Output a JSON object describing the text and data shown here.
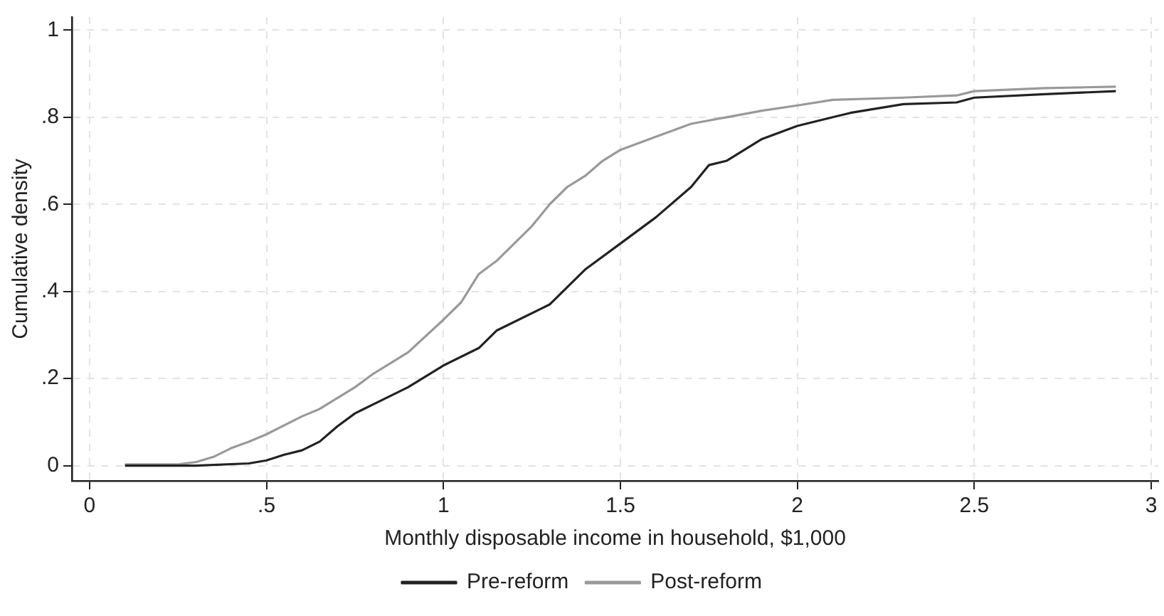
{
  "chart_data": {
    "type": "line",
    "xlabel": "Monthly disposable income in household, $1,000",
    "ylabel": "Cumulative density",
    "xlim": [
      -0.05,
      3.02
    ],
    "ylim": [
      -0.035,
      1.03
    ],
    "xticks": [
      {
        "value": 0,
        "label": "0"
      },
      {
        "value": 0.5,
        "label": ".5"
      },
      {
        "value": 1,
        "label": "1"
      },
      {
        "value": 1.5,
        "label": "1.5"
      },
      {
        "value": 2,
        "label": "2"
      },
      {
        "value": 2.5,
        "label": "2.5"
      },
      {
        "value": 3,
        "label": "3"
      }
    ],
    "yticks": [
      {
        "value": 0,
        "label": "0"
      },
      {
        "value": 0.2,
        "label": ".2"
      },
      {
        "value": 0.4,
        "label": ".4"
      },
      {
        "value": 0.6,
        "label": ".6"
      },
      {
        "value": 0.8,
        "label": ".8"
      },
      {
        "value": 1,
        "label": "1"
      }
    ],
    "grid": true,
    "legend": "bottom",
    "marker": "none",
    "line_style": "solid",
    "series": [
      {
        "name": "Pre-reform",
        "color": "#222222",
        "x": [
          0.1,
          0.3,
          0.45,
          0.5,
          0.55,
          0.6,
          0.65,
          0.7,
          0.75,
          0.8,
          0.9,
          1.0,
          1.1,
          1.15,
          1.3,
          1.4,
          1.5,
          1.6,
          1.7,
          1.75,
          1.8,
          1.9,
          2.0,
          2.1,
          2.15,
          2.3,
          2.45,
          2.5,
          2.7,
          2.9
        ],
        "values": [
          0,
          0,
          0.005,
          0.012,
          0.025,
          0.035,
          0.055,
          0.09,
          0.12,
          0.14,
          0.18,
          0.23,
          0.27,
          0.31,
          0.37,
          0.45,
          0.51,
          0.57,
          0.64,
          0.69,
          0.7,
          0.75,
          0.78,
          0.8,
          0.81,
          0.83,
          0.834,
          0.845,
          0.853,
          0.86
        ]
      },
      {
        "name": "Post-reform",
        "color": "#999999",
        "x": [
          0.1,
          0.25,
          0.3,
          0.35,
          0.4,
          0.45,
          0.5,
          0.6,
          0.65,
          0.7,
          0.75,
          0.8,
          0.9,
          1.0,
          1.05,
          1.1,
          1.15,
          1.2,
          1.25,
          1.3,
          1.35,
          1.4,
          1.45,
          1.5,
          1.6,
          1.7,
          1.8,
          1.9,
          2.0,
          2.1,
          2.3,
          2.45,
          2.5,
          2.7,
          2.9
        ],
        "values": [
          0.003,
          0.003,
          0.008,
          0.02,
          0.04,
          0.055,
          0.072,
          0.113,
          0.13,
          0.155,
          0.18,
          0.21,
          0.26,
          0.335,
          0.375,
          0.44,
          0.47,
          0.51,
          0.55,
          0.6,
          0.64,
          0.665,
          0.7,
          0.725,
          0.755,
          0.785,
          0.8,
          0.815,
          0.827,
          0.84,
          0.845,
          0.85,
          0.86,
          0.867,
          0.87
        ]
      }
    ]
  }
}
